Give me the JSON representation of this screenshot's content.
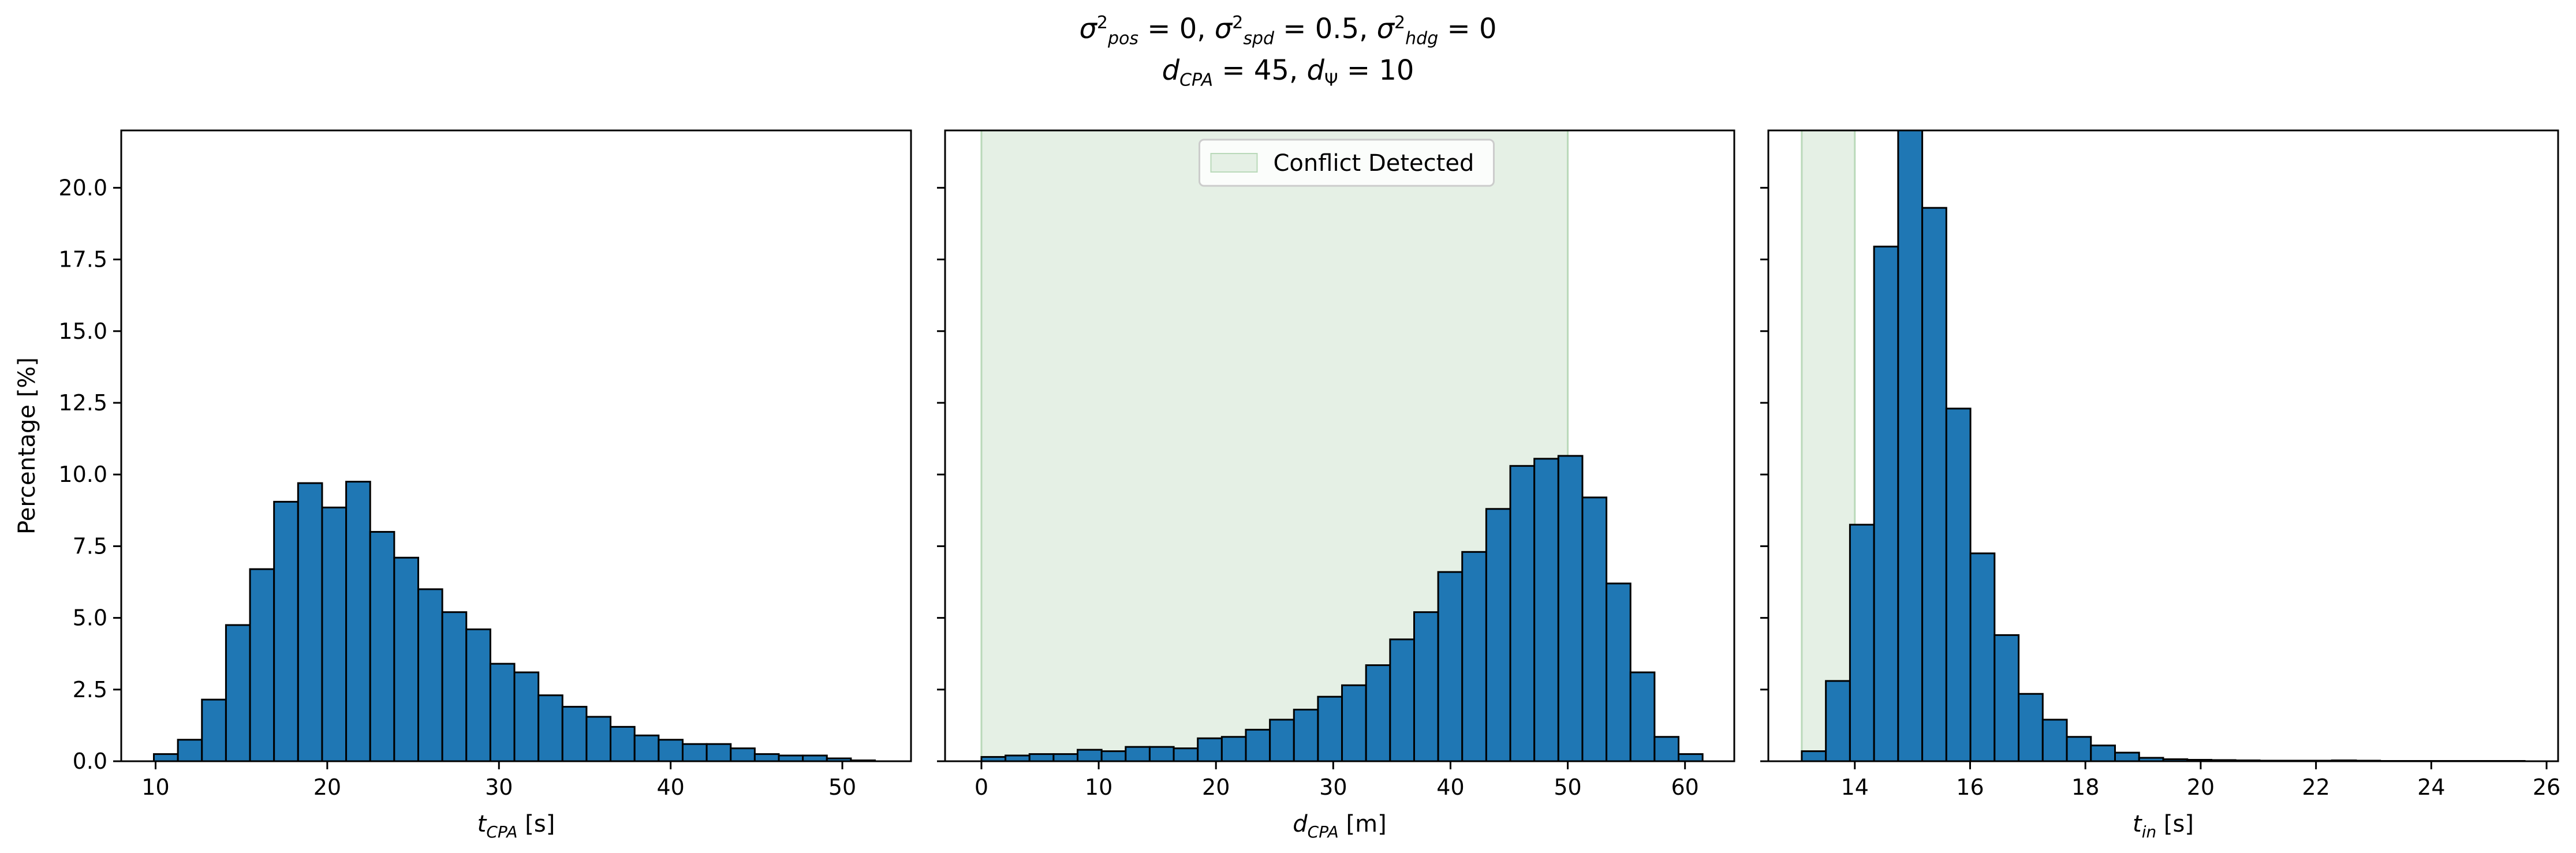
{
  "figure": {
    "title_line1": "σ²pos = 0, σ²spd = 0.5, σ²hdg = 0",
    "title_line2": "dCPA = 45, dΨ = 10"
  },
  "colors": {
    "bar_fill": "#1f77b4",
    "bar_edge": "#000000",
    "conflict_fill": "#e5f0e5",
    "conflict_edge": "#b9d9b9"
  },
  "chart_data": [
    {
      "type": "bar",
      "xlabel": "tCPA [s]",
      "ylabel": "Percentage [%]",
      "xlim": [
        8,
        54
      ],
      "ylim": [
        0,
        22
      ],
      "xticks": [
        10,
        20,
        30,
        40,
        50
      ],
      "yticks": [
        0.0,
        2.5,
        5.0,
        7.5,
        10.0,
        12.5,
        15.0,
        17.5,
        20.0
      ],
      "ytick_labels": [
        "0.0",
        "2.5",
        "5.0",
        "7.5",
        "10.0",
        "12.5",
        "15.0",
        "17.5",
        "20.0"
      ],
      "bins_start": 9.9,
      "bin_width": 1.4,
      "values": [
        0.25,
        0.75,
        2.15,
        4.75,
        6.7,
        9.05,
        9.7,
        8.85,
        9.75,
        8.0,
        7.1,
        6.0,
        5.2,
        4.6,
        3.4,
        3.1,
        2.3,
        1.9,
        1.55,
        1.2,
        0.9,
        0.75,
        0.6,
        0.6,
        0.45,
        0.25,
        0.2,
        0.2,
        0.1,
        0.03
      ],
      "legend": null
    },
    {
      "type": "bar",
      "xlabel": "dCPA [m]",
      "xlim": [
        -3.1,
        64.2
      ],
      "ylim": [
        0,
        22
      ],
      "xticks": [
        0,
        10,
        20,
        30,
        40,
        50,
        60
      ],
      "bins_start": 0,
      "bin_width": 2.05,
      "values": [
        0.15,
        0.2,
        0.25,
        0.25,
        0.4,
        0.35,
        0.5,
        0.5,
        0.45,
        0.8,
        0.85,
        1.1,
        1.45,
        1.8,
        2.25,
        2.65,
        3.35,
        4.25,
        5.2,
        6.6,
        7.3,
        8.8,
        10.3,
        10.55,
        10.65,
        9.2,
        6.2,
        3.1,
        0.85,
        0.25
      ],
      "shade": {
        "from": 0,
        "to": 50
      },
      "legend": {
        "label": "Conflict Detected",
        "position": "upper center"
      }
    },
    {
      "type": "bar",
      "xlabel": "tin [s]",
      "xlim": [
        12.5,
        26.2
      ],
      "ylim": [
        0,
        22
      ],
      "xticks": [
        14,
        16,
        18,
        20,
        22,
        24,
        26
      ],
      "bins_start": 13.08,
      "bin_width": 0.418,
      "values": [
        0.35,
        2.8,
        8.25,
        17.95,
        22.3,
        19.3,
        12.3,
        7.25,
        4.4,
        2.35,
        1.45,
        0.85,
        0.55,
        0.3,
        0.12,
        0.07,
        0.05,
        0.04,
        0.03,
        0.02,
        0.02,
        0.02,
        0.03,
        0.02,
        0.01,
        0.01,
        0.01,
        0.01,
        0.01,
        0.01
      ],
      "shade": {
        "from": 13.08,
        "to": 14.0
      },
      "legend": null
    }
  ]
}
